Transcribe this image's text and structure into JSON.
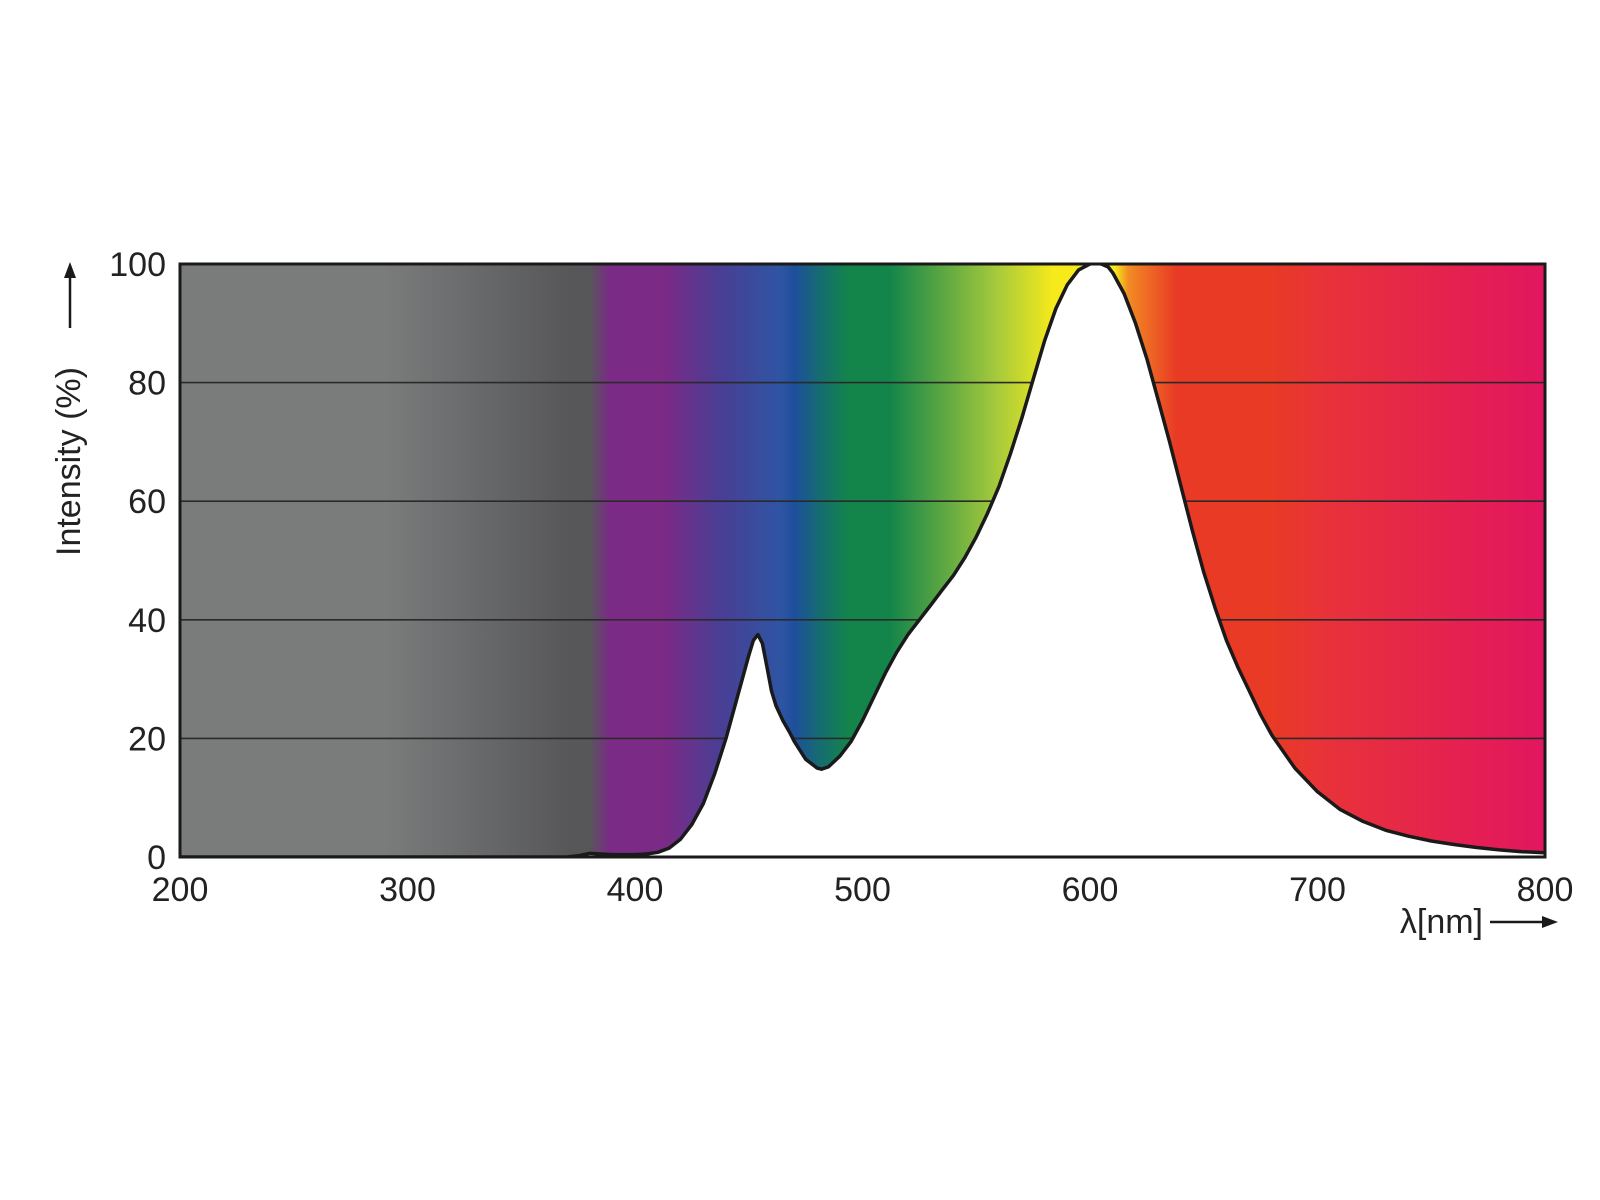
{
  "chart_data": {
    "type": "area",
    "title": "",
    "xlabel": "λ[nm]",
    "ylabel": "Intensity (%)",
    "xlim": [
      200,
      800
    ],
    "ylim": [
      0,
      100
    ],
    "x_ticks": [
      "200",
      "300",
      "400",
      "500",
      "600",
      "700",
      "800"
    ],
    "y_ticks": [
      "0",
      "20",
      "40",
      "60",
      "80",
      "100"
    ],
    "grid": true,
    "legend": "none",
    "background": "visible spectrum gradient (UV grey to deep red)",
    "spectrum_colors": {
      "uv_grey": "#7a7c7c",
      "uv_dark": "#575759",
      "violet": "#7b2a86",
      "indigo": "#4a3e94",
      "blue": "#2e55a3",
      "cyan_blue": "#1e4f9c",
      "teal": "#156e6e",
      "green": "#13854a",
      "yellow_green": "#a9cb3b",
      "yellow": "#f6ea1a",
      "orange": "#f28a24",
      "red_orange": "#e83a25",
      "red": "#e8323a",
      "magenta_red": "#e2165f"
    },
    "series": [
      {
        "x": [
          200,
          370,
          375,
          380,
          390,
          400,
          405,
          410,
          415,
          420,
          425,
          430,
          435,
          440,
          445,
          450,
          452,
          454,
          456,
          458,
          460,
          462,
          465,
          468,
          470,
          475,
          480,
          482,
          485,
          490,
          495,
          500,
          505,
          510,
          515,
          520,
          525,
          530,
          535,
          540,
          545,
          550,
          555,
          560,
          565,
          570,
          575,
          580,
          585,
          590,
          595,
          600,
          603,
          605,
          608,
          610,
          615,
          620,
          625,
          630,
          635,
          640,
          645,
          650,
          655,
          660,
          665,
          670,
          675,
          680,
          690,
          700,
          710,
          720,
          730,
          740,
          750,
          760,
          770,
          780,
          790,
          800,
          802,
          803
        ],
        "y": [
          0,
          0,
          0.2,
          0.6,
          0.4,
          0.4,
          0.5,
          0.8,
          1.5,
          3,
          5.5,
          9,
          14,
          20,
          27,
          34,
          36.5,
          37.5,
          36,
          32,
          28,
          25.5,
          23,
          21,
          19.5,
          16.5,
          15,
          14.8,
          15.2,
          17,
          19.5,
          23,
          27,
          31,
          34.5,
          37.5,
          40,
          42.5,
          45,
          47.5,
          50.5,
          54,
          58,
          62.5,
          68,
          74,
          80.5,
          87,
          92.5,
          96.5,
          99,
          100,
          100.2,
          100,
          99.5,
          98.5,
          95,
          90,
          84,
          77,
          70,
          62.5,
          55,
          48,
          42,
          36.5,
          32,
          28,
          24,
          20.5,
          15,
          11,
          8,
          6,
          4.5,
          3.5,
          2.7,
          2.1,
          1.6,
          1.2,
          0.9,
          0.7,
          0.3,
          0
        ]
      }
    ]
  }
}
